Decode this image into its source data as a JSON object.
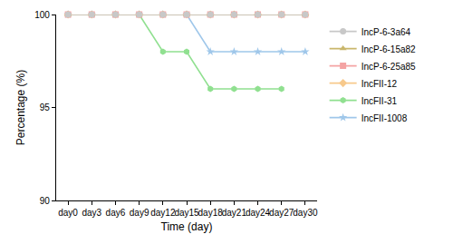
{
  "chart_data": {
    "type": "line",
    "x_label": "Time (day)",
    "y_label": "Percentage (%)",
    "categories": [
      "day0",
      "day3",
      "day6",
      "day9",
      "day12",
      "day15",
      "day18",
      "day21",
      "day24",
      "day27",
      "day30"
    ],
    "series": [
      {
        "name": "IncP-6-3a64",
        "color": "#c8c8c8",
        "marker": "circle",
        "line_style": "solid",
        "values": [
          100,
          100,
          100,
          100,
          100,
          100,
          100,
          100,
          100,
          100,
          100
        ]
      },
      {
        "name": "IncP-6-15a82",
        "color": "#c9b66b",
        "marker": "triangle-up",
        "line_style": "solid",
        "values": [
          100,
          100,
          100,
          100,
          100,
          100,
          100,
          100,
          100,
          100,
          100
        ]
      },
      {
        "name": "IncP-6-25a85",
        "color": "#f4a3a3",
        "marker": "square",
        "line_style": "solid",
        "values": [
          100,
          100,
          100,
          100,
          100,
          100,
          100,
          100,
          100,
          100,
          100
        ]
      },
      {
        "name": "IncFII-12",
        "color": "#f7c98c",
        "marker": "diamond",
        "line_style": "solid",
        "values": [
          100,
          100,
          100,
          100,
          100,
          100,
          100,
          100,
          100,
          100,
          100
        ]
      },
      {
        "name": "IncFII-31",
        "color": "#90e090",
        "marker": "hexagon",
        "line_style": "solid",
        "values": [
          100,
          100,
          100,
          100,
          98,
          98,
          96,
          96,
          96,
          96,
          null
        ]
      },
      {
        "name": "IncFII-1008",
        "color": "#9fc7ea",
        "marker": "star",
        "line_style": "solid",
        "values": [
          100,
          100,
          100,
          100,
          100,
          100,
          98,
          98,
          98,
          98,
          98
        ]
      }
    ],
    "ylim": [
      90,
      100
    ],
    "yticks": [
      90,
      95,
      100
    ],
    "grid": false,
    "legend": "right"
  }
}
